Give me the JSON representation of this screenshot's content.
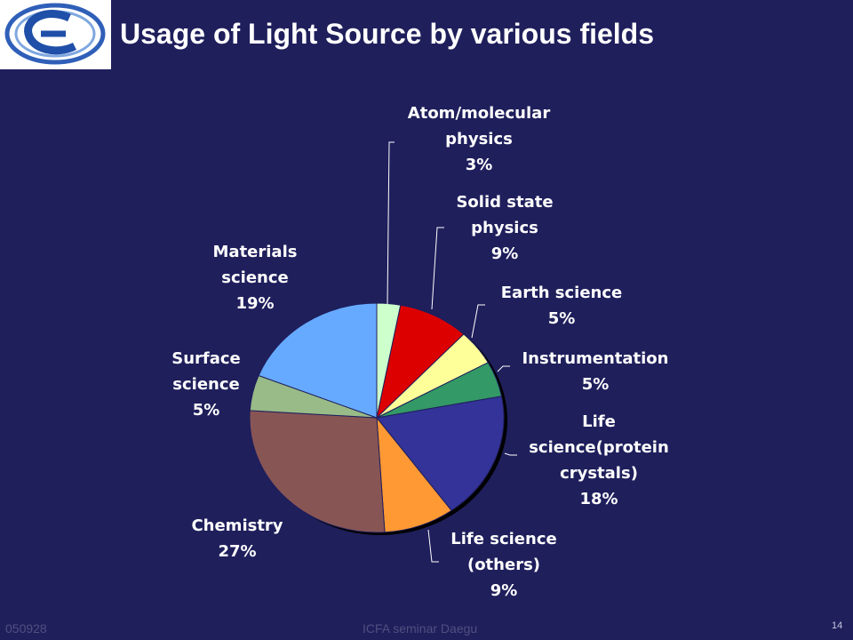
{
  "header": {
    "title": "Usage of Light Source by various fields"
  },
  "footer": {
    "date": "050928",
    "event": "ICFA seminar Daegu",
    "page": "14"
  },
  "chart_data": {
    "type": "pie",
    "title": "Usage of Light Source by various fields",
    "slices": [
      {
        "label": [
          "Atom/molecular",
          "physics"
        ],
        "pct": "3%",
        "value": 3,
        "color": "#ccffcc"
      },
      {
        "label": [
          "Solid state",
          "physics"
        ],
        "pct": "9%",
        "value": 9,
        "color": "#dd0000"
      },
      {
        "label": [
          "Earth science"
        ],
        "pct": "5%",
        "value": 5,
        "color": "#ffff99"
      },
      {
        "label": [
          "Instrumentation"
        ],
        "pct": "5%",
        "value": 5,
        "color": "#339966"
      },
      {
        "label": [
          "Life",
          "science(protein",
          "crystals)"
        ],
        "pct": "18%",
        "value": 18,
        "color": "#333399"
      },
      {
        "label": [
          "Life science",
          "(others)"
        ],
        "pct": "9%",
        "value": 9,
        "color": "#ff9933"
      },
      {
        "label": [
          "Chemistry"
        ],
        "pct": "27%",
        "value": 27,
        "color": "#885555"
      },
      {
        "label": [
          "Surface",
          "science"
        ],
        "pct": "5%",
        "value": 5,
        "color": "#99bb88"
      },
      {
        "label": [
          "Materials",
          "science"
        ],
        "pct": "19%",
        "value": 19,
        "color": "#66aaff"
      }
    ]
  }
}
